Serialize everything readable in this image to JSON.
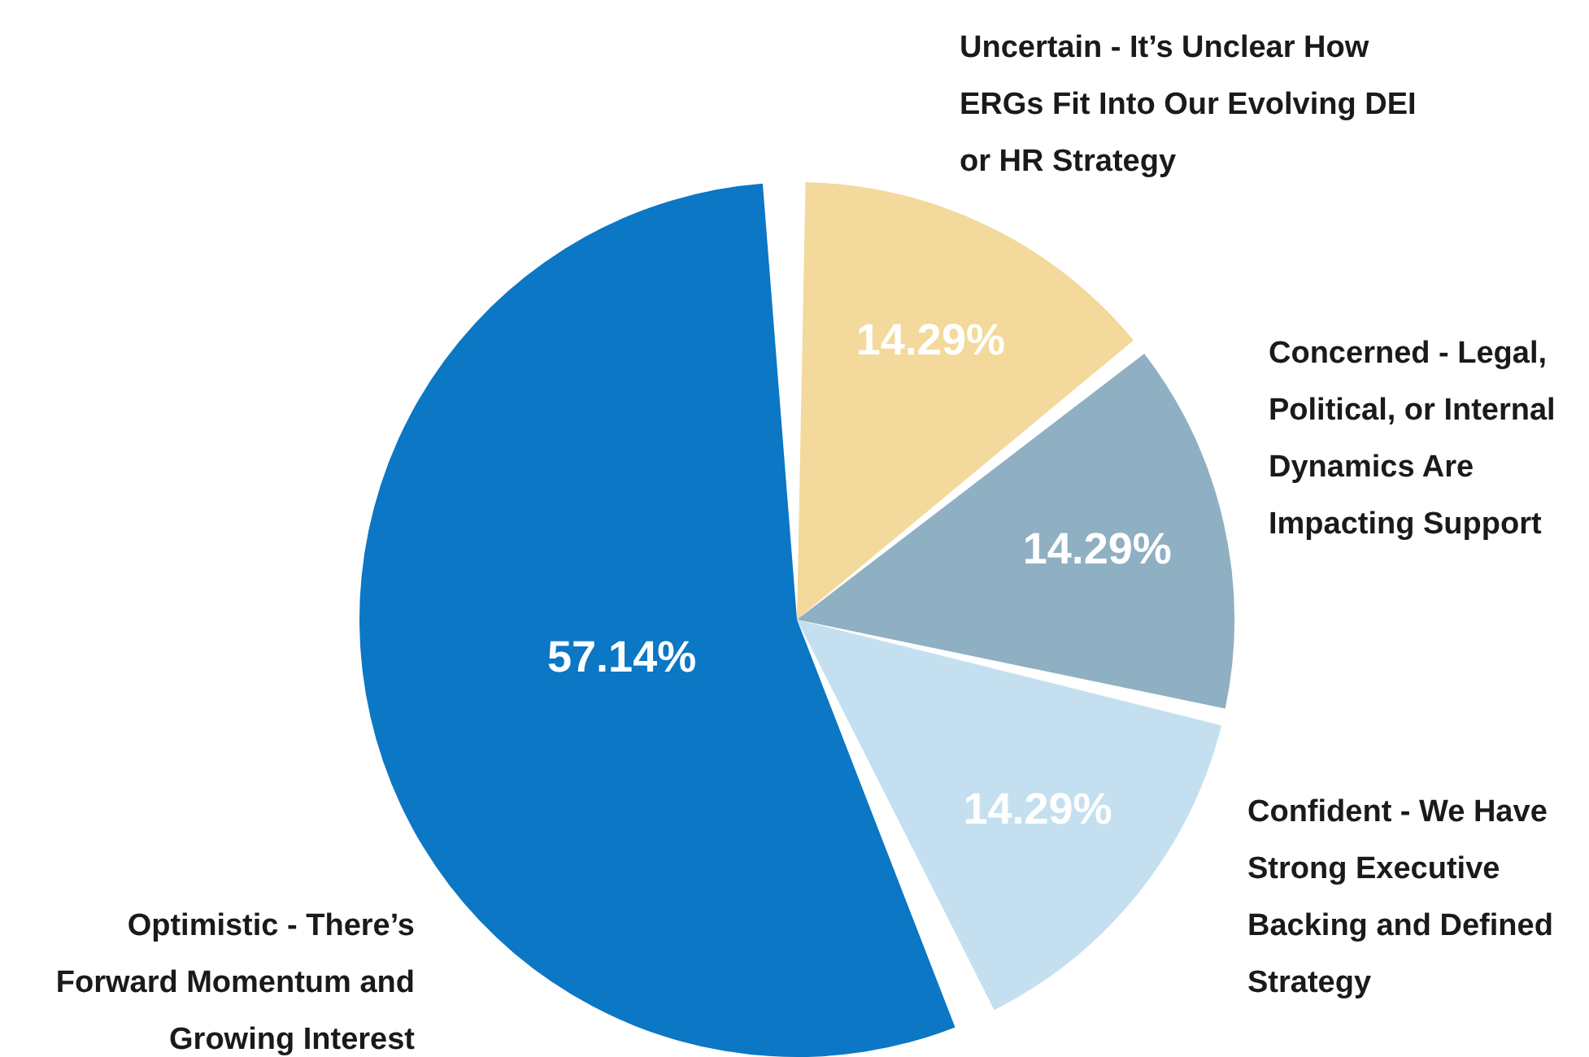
{
  "chart_data": {
    "type": "pie",
    "categories": [
      "Uncertain - It’s Unclear How ERGs Fit Into Our Evolving DEI or HR Strategy",
      "Concerned - Legal, Political, or Internal Dynamics Are Impacting Support",
      "Confident - We Have Strong Executive Backing and Defined Strategy",
      "Optimistic - There’s Forward Momentum and Growing Interest"
    ],
    "values": [
      14.29,
      14.29,
      14.29,
      57.14
    ],
    "value_labels": [
      "14.29%",
      "14.29%",
      "14.29%",
      "57.14%"
    ],
    "colors": [
      "#f3d99b",
      "#8fafc2",
      "#c4e0f0",
      "#0b77c5"
    ],
    "legend": false
  }
}
